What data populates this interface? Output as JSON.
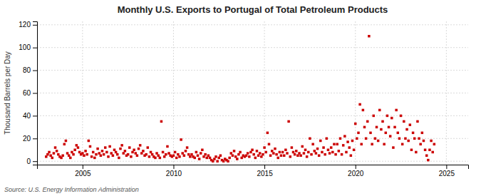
{
  "chart_data": {
    "type": "scatter",
    "title": "Monthly U.S. Exports to Portugal of Total Petroleum Products",
    "ylabel": "Thousand Barrels per Day",
    "source": "Source: U.S. Energy Information Administration",
    "color": "#cc0000",
    "marker": "square",
    "grid": true,
    "xlim": [
      2002.5,
      2026.2
    ],
    "ylim": [
      -3,
      123
    ],
    "xticks": [
      2005,
      2010,
      2015,
      2020,
      2025
    ],
    "yticks": [
      0,
      20,
      40,
      60,
      80,
      100,
      120
    ],
    "x": [
      2003.0,
      2003.083,
      2003.167,
      2003.25,
      2003.333,
      2003.417,
      2003.5,
      2003.583,
      2003.667,
      2003.75,
      2003.833,
      2003.917,
      2004.0,
      2004.083,
      2004.167,
      2004.25,
      2004.333,
      2004.417,
      2004.5,
      2004.583,
      2004.667,
      2004.75,
      2004.833,
      2004.917,
      2005.0,
      2005.083,
      2005.167,
      2005.25,
      2005.333,
      2005.417,
      2005.5,
      2005.583,
      2005.667,
      2005.75,
      2005.833,
      2005.917,
      2006.0,
      2006.083,
      2006.167,
      2006.25,
      2006.333,
      2006.417,
      2006.5,
      2006.583,
      2006.667,
      2006.75,
      2006.833,
      2006.917,
      2007.0,
      2007.083,
      2007.167,
      2007.25,
      2007.333,
      2007.417,
      2007.5,
      2007.583,
      2007.667,
      2007.75,
      2007.833,
      2007.917,
      2008.0,
      2008.083,
      2008.167,
      2008.25,
      2008.333,
      2008.417,
      2008.5,
      2008.583,
      2008.667,
      2008.75,
      2008.833,
      2008.917,
      2009.0,
      2009.083,
      2009.167,
      2009.25,
      2009.333,
      2009.417,
      2009.5,
      2009.583,
      2009.667,
      2009.75,
      2009.833,
      2009.917,
      2010.0,
      2010.083,
      2010.167,
      2010.25,
      2010.333,
      2010.417,
      2010.5,
      2010.583,
      2010.667,
      2010.75,
      2010.833,
      2010.917,
      2011.0,
      2011.083,
      2011.167,
      2011.25,
      2011.333,
      2011.417,
      2011.5,
      2011.583,
      2011.667,
      2011.75,
      2011.833,
      2011.917,
      2012.0,
      2012.083,
      2012.167,
      2012.25,
      2012.333,
      2012.417,
      2012.5,
      2012.583,
      2012.667,
      2012.75,
      2012.833,
      2012.917,
      2013.0,
      2013.083,
      2013.167,
      2013.25,
      2013.333,
      2013.417,
      2013.5,
      2013.583,
      2013.667,
      2013.75,
      2013.833,
      2013.917,
      2014.0,
      2014.083,
      2014.167,
      2014.25,
      2014.333,
      2014.417,
      2014.5,
      2014.583,
      2014.667,
      2014.75,
      2014.833,
      2014.917,
      2015.0,
      2015.083,
      2015.167,
      2015.25,
      2015.333,
      2015.417,
      2015.5,
      2015.583,
      2015.667,
      2015.75,
      2015.833,
      2015.917,
      2016.0,
      2016.083,
      2016.167,
      2016.25,
      2016.333,
      2016.417,
      2016.5,
      2016.583,
      2016.667,
      2016.75,
      2016.833,
      2016.917,
      2017.0,
      2017.083,
      2017.167,
      2017.25,
      2017.333,
      2017.417,
      2017.5,
      2017.583,
      2017.667,
      2017.75,
      2017.833,
      2017.917,
      2018.0,
      2018.083,
      2018.167,
      2018.25,
      2018.333,
      2018.417,
      2018.5,
      2018.583,
      2018.667,
      2018.75,
      2018.833,
      2018.917,
      2019.0,
      2019.083,
      2019.167,
      2019.25,
      2019.333,
      2019.417,
      2019.5,
      2019.583,
      2019.667,
      2019.75,
      2019.833,
      2019.917,
      2020.0,
      2020.083,
      2020.167,
      2020.25,
      2020.333,
      2020.417,
      2020.5,
      2020.583,
      2020.667,
      2020.75,
      2020.833,
      2020.917,
      2021.0,
      2021.083,
      2021.167,
      2021.25,
      2021.333,
      2021.417,
      2021.5,
      2021.583,
      2021.667,
      2021.75,
      2021.833,
      2021.917,
      2022.0,
      2022.083,
      2022.167,
      2022.25,
      2022.333,
      2022.417,
      2022.5,
      2022.583,
      2022.667,
      2022.75,
      2022.833,
      2022.917,
      2023.0,
      2023.083,
      2023.167,
      2023.25,
      2023.333,
      2023.417,
      2023.5,
      2023.583,
      2023.667,
      2023.75,
      2023.833,
      2023.917,
      2024.0,
      2024.083,
      2024.167,
      2024.25,
      2024.333
    ],
    "values": [
      4,
      6,
      8,
      5,
      3,
      7,
      12,
      9,
      6,
      4,
      3,
      5,
      15,
      18,
      7,
      5,
      3,
      8,
      6,
      10,
      14,
      12,
      8,
      6,
      7,
      5,
      9,
      6,
      18,
      13,
      4,
      8,
      3,
      6,
      11,
      7,
      5,
      9,
      6,
      12,
      8,
      4,
      13,
      7,
      5,
      10,
      8,
      6,
      3,
      11,
      14,
      7,
      9,
      5,
      6,
      12,
      4,
      8,
      10,
      7,
      5,
      11,
      14,
      7,
      9,
      5,
      6,
      12,
      4,
      8,
      6,
      4,
      3,
      7,
      5,
      3,
      35,
      8,
      4,
      6,
      13,
      7,
      5,
      4,
      5,
      8,
      3,
      6,
      4,
      19,
      7,
      5,
      9,
      12,
      6,
      4,
      6,
      4,
      3,
      8,
      5,
      2,
      7,
      10,
      4,
      6,
      3,
      5,
      3,
      1,
      0,
      2,
      4,
      0,
      3,
      5,
      1,
      0,
      2,
      1,
      0,
      3,
      7,
      5,
      9,
      4,
      2,
      6,
      8,
      3,
      5,
      4,
      5,
      7,
      4,
      8,
      10,
      6,
      3,
      9,
      5,
      7,
      4,
      6,
      12,
      8,
      25,
      15,
      5,
      9,
      7,
      11,
      6,
      3,
      8,
      5,
      8,
      5,
      10,
      7,
      35,
      4,
      12,
      8,
      6,
      9,
      5,
      7,
      5,
      13,
      7,
      10,
      4,
      8,
      20,
      6,
      15,
      9,
      7,
      11,
      5,
      18,
      8,
      12,
      6,
      20,
      10,
      7,
      12,
      8,
      15,
      6,
      15,
      9,
      20,
      6,
      14,
      22,
      8,
      17,
      12,
      5,
      18,
      10,
      33,
      20,
      25,
      50,
      15,
      45,
      30,
      20,
      35,
      110,
      25,
      15,
      40,
      20,
      30,
      18,
      45,
      28,
      35,
      15,
      25,
      40,
      30,
      22,
      38,
      12,
      30,
      45,
      25,
      20,
      40,
      15,
      35,
      20,
      28,
      18,
      32,
      10,
      25,
      20,
      8,
      35,
      20,
      15,
      25,
      18,
      10,
      5,
      1,
      10,
      18,
      8,
      15
    ]
  }
}
